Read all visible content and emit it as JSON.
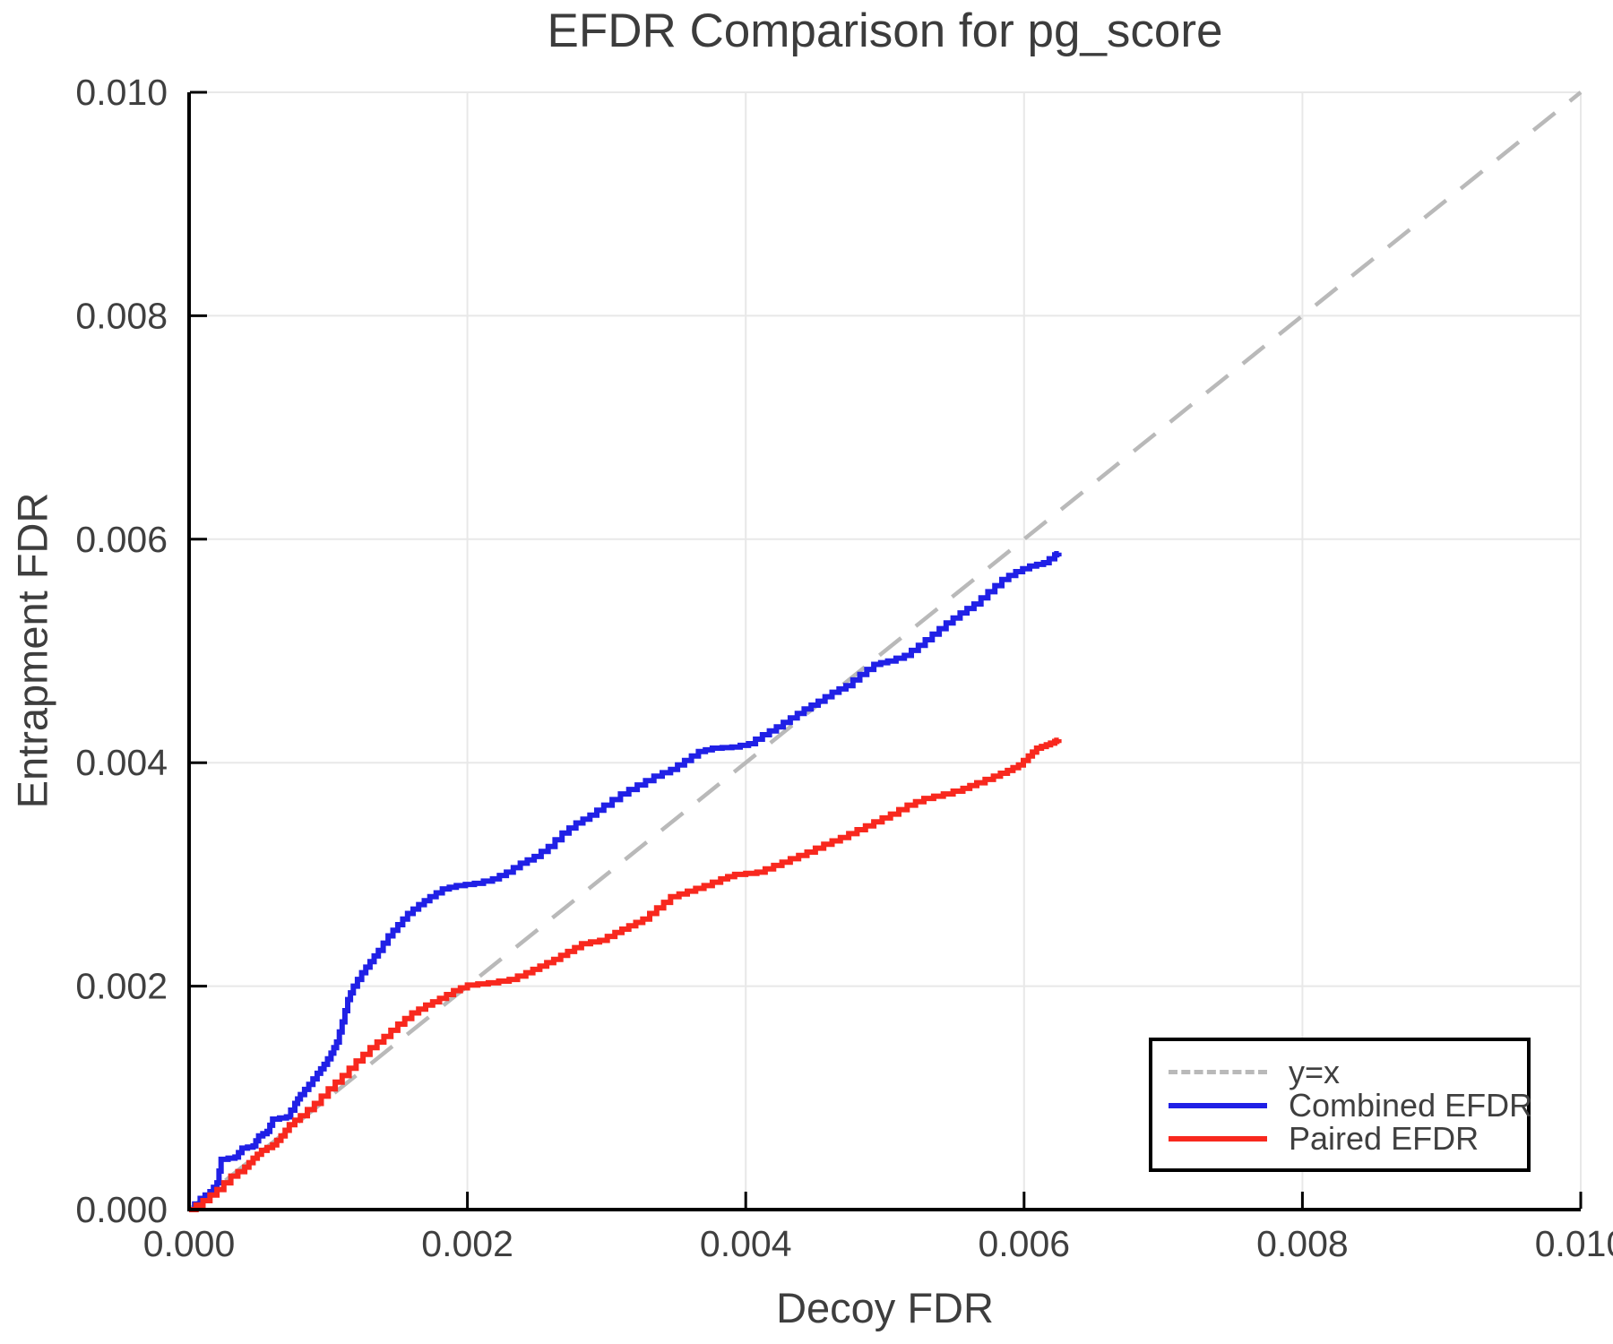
{
  "figure": {
    "title": "EFDR Comparison for pg_score"
  },
  "chart_data": {
    "type": "line",
    "title": "EFDR Comparison for pg_score",
    "xlabel": "Decoy FDR",
    "ylabel": "Entrapment FDR",
    "xlim": [
      0.0,
      0.01
    ],
    "ylim": [
      0.0,
      0.01
    ],
    "x_ticks": [
      0.0,
      0.002,
      0.004,
      0.006,
      0.008,
      0.01
    ],
    "y_ticks": [
      0.0,
      0.002,
      0.004,
      0.006,
      0.008,
      0.01
    ],
    "tick_decimals": 3,
    "grid": true,
    "grid_color": "#e8e8e8",
    "axis_color": "#000000",
    "text_color": "#3f3f3f",
    "legend_position": "lower right",
    "reference_line": {
      "label": "y=x",
      "color": "#b9b9b9",
      "dash": true,
      "x": [
        0.0,
        0.01
      ],
      "y": [
        0.0,
        0.01
      ]
    },
    "series": [
      {
        "name": "Combined EFDR",
        "color": "#2020e6",
        "step": true,
        "points": [
          [
            0.0,
            0.0
          ],
          [
            8e-05,
            0.0001
          ],
          [
            0.00015,
            0.00016
          ],
          [
            0.0002,
            0.00024
          ],
          [
            0.00023,
            0.00045
          ],
          [
            0.00033,
            0.00047
          ],
          [
            0.00038,
            0.00055
          ],
          [
            0.00046,
            0.00057
          ],
          [
            0.0005,
            0.00066
          ],
          [
            0.00056,
            0.0007
          ],
          [
            0.0006,
            0.00081
          ],
          [
            0.0007,
            0.00083
          ],
          [
            0.00076,
            0.00095
          ],
          [
            0.0008,
            0.00103
          ],
          [
            0.00086,
            0.00112
          ],
          [
            0.00092,
            0.00122
          ],
          [
            0.00097,
            0.0013
          ],
          [
            0.00102,
            0.0014
          ],
          [
            0.00106,
            0.0015
          ],
          [
            0.0011,
            0.00168
          ],
          [
            0.00114,
            0.00188
          ],
          [
            0.00118,
            0.002
          ],
          [
            0.00124,
            0.00212
          ],
          [
            0.0013,
            0.00222
          ],
          [
            0.00136,
            0.00232
          ],
          [
            0.00143,
            0.00245
          ],
          [
            0.0015,
            0.00255
          ],
          [
            0.00157,
            0.00265
          ],
          [
            0.00165,
            0.00273
          ],
          [
            0.00173,
            0.0028
          ],
          [
            0.00182,
            0.00287
          ],
          [
            0.00192,
            0.0029
          ],
          [
            0.00205,
            0.00292
          ],
          [
            0.00218,
            0.00296
          ],
          [
            0.00228,
            0.00302
          ],
          [
            0.00238,
            0.0031
          ],
          [
            0.00248,
            0.00316
          ],
          [
            0.00258,
            0.00325
          ],
          [
            0.00268,
            0.00337
          ],
          [
            0.00278,
            0.00346
          ],
          [
            0.00288,
            0.00353
          ],
          [
            0.00298,
            0.00362
          ],
          [
            0.0031,
            0.00372
          ],
          [
            0.00322,
            0.0038
          ],
          [
            0.00334,
            0.00388
          ],
          [
            0.00346,
            0.00394
          ],
          [
            0.00356,
            0.00402
          ],
          [
            0.00366,
            0.0041
          ],
          [
            0.00376,
            0.00413
          ],
          [
            0.0039,
            0.00414
          ],
          [
            0.00402,
            0.00417
          ],
          [
            0.00412,
            0.00425
          ],
          [
            0.00422,
            0.00432
          ],
          [
            0.00432,
            0.0044
          ],
          [
            0.00442,
            0.00448
          ],
          [
            0.00452,
            0.00455
          ],
          [
            0.00462,
            0.00463
          ],
          [
            0.00472,
            0.00469
          ],
          [
            0.00482,
            0.00479
          ],
          [
            0.00492,
            0.00488
          ],
          [
            0.00502,
            0.00491
          ],
          [
            0.00514,
            0.00496
          ],
          [
            0.00524,
            0.00505
          ],
          [
            0.00534,
            0.00515
          ],
          [
            0.00544,
            0.00525
          ],
          [
            0.00554,
            0.00534
          ],
          [
            0.00564,
            0.00542
          ],
          [
            0.00574,
            0.00553
          ],
          [
            0.00584,
            0.00564
          ],
          [
            0.00594,
            0.00571
          ],
          [
            0.00604,
            0.00576
          ],
          [
            0.00614,
            0.00579
          ],
          [
            0.00622,
            0.00586
          ],
          [
            0.00625,
            0.00588
          ]
        ]
      },
      {
        "name": "Paired EFDR",
        "color": "#f8281e",
        "step": true,
        "points": [
          [
            0.0,
            0.0
          ],
          [
            0.0001,
            8e-05
          ],
          [
            0.0002,
            0.00018
          ],
          [
            0.0003,
            0.0003
          ],
          [
            0.0004,
            0.00038
          ],
          [
            0.00046,
            0.00046
          ],
          [
            0.00052,
            0.00053
          ],
          [
            0.0006,
            0.00058
          ],
          [
            0.00066,
            0.00066
          ],
          [
            0.00072,
            0.00076
          ],
          [
            0.0008,
            0.00084
          ],
          [
            0.0009,
            0.00095
          ],
          [
            0.001,
            0.00108
          ],
          [
            0.0011,
            0.0012
          ],
          [
            0.0012,
            0.00133
          ],
          [
            0.0013,
            0.00145
          ],
          [
            0.0014,
            0.00155
          ],
          [
            0.0015,
            0.00166
          ],
          [
            0.0016,
            0.00176
          ],
          [
            0.0017,
            0.00183
          ],
          [
            0.0018,
            0.00189
          ],
          [
            0.0019,
            0.00196
          ],
          [
            0.002,
            0.00201
          ],
          [
            0.00215,
            0.00203
          ],
          [
            0.0023,
            0.00206
          ],
          [
            0.00242,
            0.00212
          ],
          [
            0.00252,
            0.00218
          ],
          [
            0.00262,
            0.00224
          ],
          [
            0.00272,
            0.00231
          ],
          [
            0.00282,
            0.00238
          ],
          [
            0.00295,
            0.00241
          ],
          [
            0.00306,
            0.00248
          ],
          [
            0.00316,
            0.00254
          ],
          [
            0.00326,
            0.0026
          ],
          [
            0.00336,
            0.0027
          ],
          [
            0.00346,
            0.0028
          ],
          [
            0.00358,
            0.00285
          ],
          [
            0.0037,
            0.0029
          ],
          [
            0.00382,
            0.00296
          ],
          [
            0.00392,
            0.003
          ],
          [
            0.00408,
            0.00302
          ],
          [
            0.0042,
            0.00308
          ],
          [
            0.00432,
            0.00314
          ],
          [
            0.00444,
            0.0032
          ],
          [
            0.00456,
            0.00327
          ],
          [
            0.00468,
            0.00333
          ],
          [
            0.0048,
            0.0034
          ],
          [
            0.00492,
            0.00347
          ],
          [
            0.00504,
            0.00354
          ],
          [
            0.00516,
            0.00362
          ],
          [
            0.00528,
            0.00368
          ],
          [
            0.00542,
            0.00372
          ],
          [
            0.00556,
            0.00377
          ],
          [
            0.00566,
            0.00382
          ],
          [
            0.00578,
            0.00388
          ],
          [
            0.00588,
            0.00393
          ],
          [
            0.00596,
            0.00398
          ],
          [
            0.00603,
            0.00406
          ],
          [
            0.00609,
            0.00413
          ],
          [
            0.00616,
            0.00416
          ],
          [
            0.00622,
            0.00419
          ],
          [
            0.00625,
            0.00421
          ]
        ]
      }
    ]
  }
}
